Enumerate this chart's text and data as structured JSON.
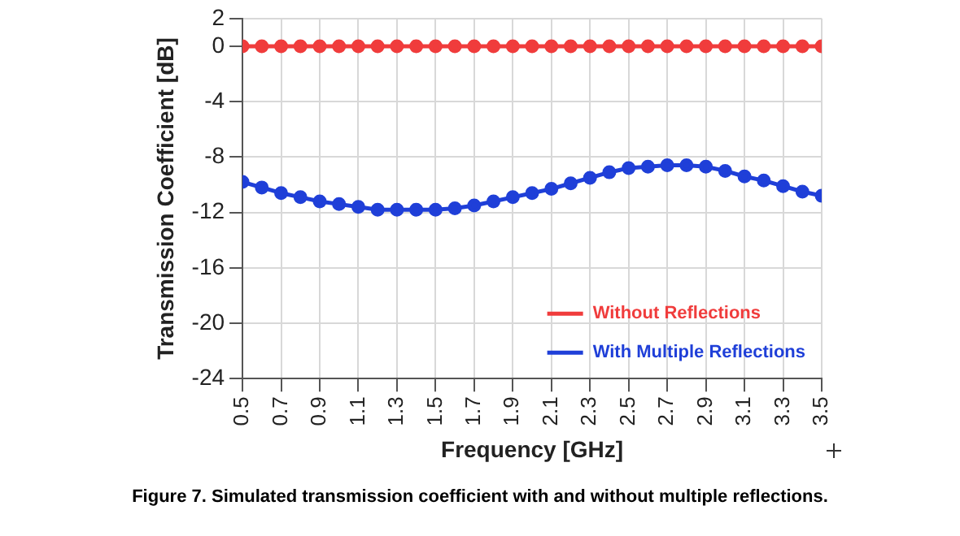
{
  "chart_data": {
    "type": "line",
    "xlabel": "Frequency [GHz]",
    "ylabel": "Transmission Coefficient [dB]",
    "annotations": [
      "Figure 7. Simulated transmission coefficient with and without multiple reflections."
    ],
    "x": [
      0.5,
      0.6,
      0.7,
      0.8,
      0.9,
      1.0,
      1.1,
      1.2,
      1.3,
      1.4,
      1.5,
      1.6,
      1.7,
      1.8,
      1.9,
      2.0,
      2.1,
      2.2,
      2.3,
      2.4,
      2.5,
      2.6,
      2.7,
      2.8,
      2.9,
      3.0,
      3.1,
      3.2,
      3.3,
      3.4,
      3.5
    ],
    "series": [
      {
        "name": "Without Reflections",
        "color": "#f03c3c",
        "values": [
          0,
          0,
          0,
          0,
          0,
          0,
          0,
          0,
          0,
          0,
          0,
          0,
          0,
          0,
          0,
          0,
          0,
          0,
          0,
          0,
          0,
          0,
          0,
          0,
          0,
          0,
          0,
          0,
          0,
          0,
          0
        ]
      },
      {
        "name": "With Multiple Reflections",
        "color": "#1f3fd8",
        "values": [
          -9.8,
          -10.2,
          -10.6,
          -10.9,
          -11.2,
          -11.4,
          -11.6,
          -11.8,
          -11.8,
          -11.8,
          -11.8,
          -11.7,
          -11.5,
          -11.2,
          -10.9,
          -10.6,
          -10.3,
          -9.9,
          -9.5,
          -9.1,
          -8.8,
          -8.7,
          -8.6,
          -8.6,
          -8.7,
          -9.0,
          -9.4,
          -9.7,
          -10.1,
          -10.5,
          -10.8
        ]
      }
    ],
    "xlim": [
      0.5,
      3.5
    ],
    "xticks": [
      0.5,
      0.7,
      0.9,
      1.1,
      1.3,
      1.5,
      1.7,
      1.9,
      2.1,
      2.3,
      2.5,
      2.7,
      2.9,
      3.1,
      3.3,
      3.5
    ],
    "ylim": [
      -24,
      2
    ],
    "yticks": [
      -24,
      -20,
      -16,
      -12,
      -8,
      -4,
      0,
      2
    ],
    "grid": true,
    "legend": "bottom right",
    "marker": "circle",
    "line_style": "solid"
  }
}
